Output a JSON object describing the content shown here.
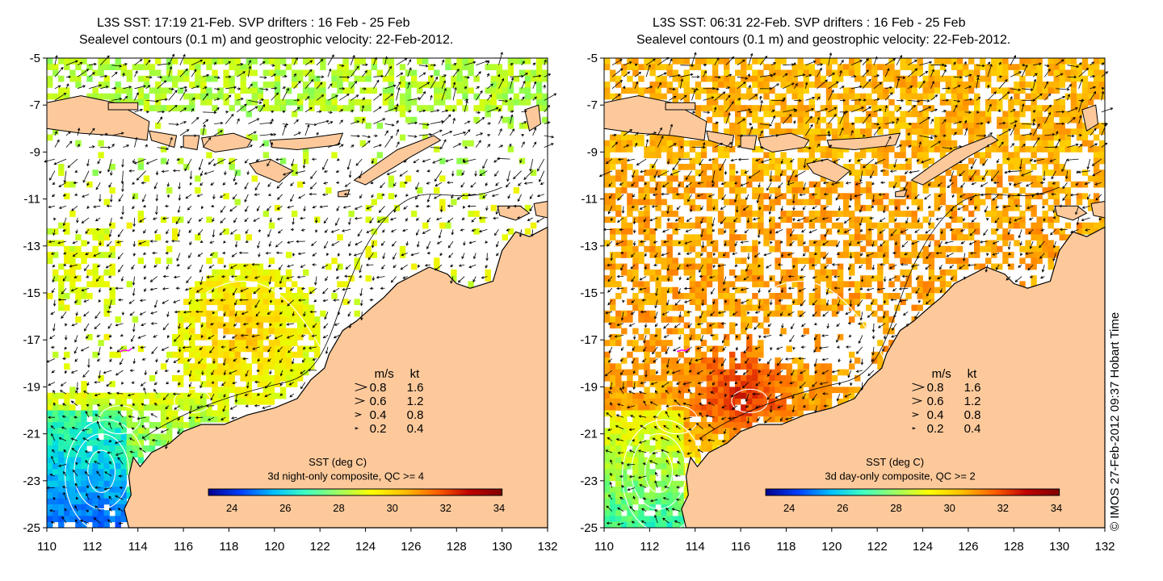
{
  "panels": [
    {
      "title_line1": "L3S SST: 17:19 21-Feb. SVP drifters : 16 Feb - 25 Feb",
      "title_line2": "Sealevel contours (0.1 m) and geostrophic velocity: 22-Feb-2012.",
      "legend_title": "SST (deg C)",
      "legend_subtitle": "3d night-only composite, QC >= 4",
      "colorbar_ticks": [
        "24",
        "26",
        "28",
        "30",
        "32",
        "34"
      ],
      "composite": "night"
    },
    {
      "title_line1": "L3S SST: 06:31 22-Feb. SVP drifters : 16 Feb - 25 Feb",
      "title_line2": "Sealevel contours (0.1 m) and geostrophic velocity: 22-Feb-2012.",
      "legend_title": "SST (deg C)",
      "legend_subtitle": "3d day-only composite, QC >= 2",
      "colorbar_ticks": [
        "24",
        "26",
        "28",
        "30",
        "32",
        "34"
      ],
      "composite": "day"
    }
  ],
  "axes": {
    "x_ticks": [
      "110",
      "112",
      "114",
      "116",
      "118",
      "120",
      "122",
      "124",
      "126",
      "128",
      "130",
      "132"
    ],
    "y_ticks": [
      "-5",
      "-7",
      "-9",
      "-11",
      "-13",
      "-15",
      "-17",
      "-19",
      "-21",
      "-23",
      "-25"
    ]
  },
  "velocity_legend": {
    "header_ms": "m/s",
    "header_kt": "kt",
    "rows": [
      {
        "ms": "0.8",
        "kt": "1.6"
      },
      {
        "ms": "0.6",
        "kt": "1.2"
      },
      {
        "ms": "0.4",
        "kt": "0.8"
      },
      {
        "ms": "0.2",
        "kt": "0.4"
      }
    ]
  },
  "copyright": "© IMOS 27-Feb-2012 09:37 Hobart Time",
  "colors": {
    "land": "#fdc99b",
    "ocean_nodata": "#ffffff",
    "coastline": "#000000",
    "contour": "#ffffff",
    "sst_scale": [
      "#00008f",
      "#0040ff",
      "#00c0ff",
      "#40ffc0",
      "#a0ff60",
      "#ffff00",
      "#ffc000",
      "#ff6000",
      "#c00000",
      "#800000"
    ]
  }
}
